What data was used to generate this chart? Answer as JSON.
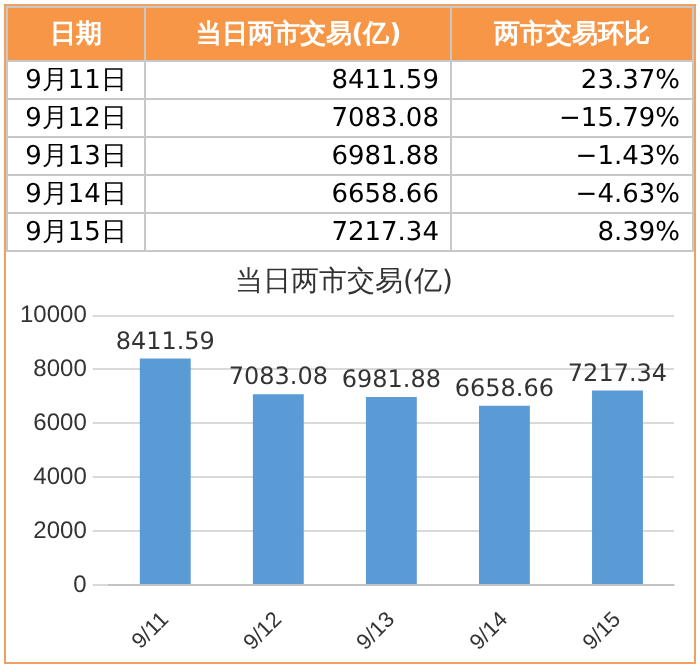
{
  "chart_data": {
    "type": "bar",
    "title": "当日两市交易(亿)",
    "categories": [
      "9/11",
      "9/12",
      "9/13",
      "9/14",
      "9/15"
    ],
    "values": [
      8411.59,
      7083.08,
      6981.88,
      6658.66,
      7217.34
    ],
    "color": "#5b9bd5",
    "ylim": [
      0,
      10000
    ],
    "yticks": [
      0,
      2000,
      4000,
      6000,
      8000,
      10000
    ],
    "grid": "y",
    "data_labels": true,
    "annotations": [
      "日期",
      "当日两市交易(亿)",
      "两市交易环比",
      "9月11日",
      "8411.59",
      "23.37%",
      "9月12日",
      "7083.08",
      "−15.79%",
      "9月13日",
      "6981.88",
      "−1.43%",
      "9月14日",
      "6658.66",
      "−4.63%",
      "9月15日",
      "7217.34",
      "8.39%"
    ]
  }
}
